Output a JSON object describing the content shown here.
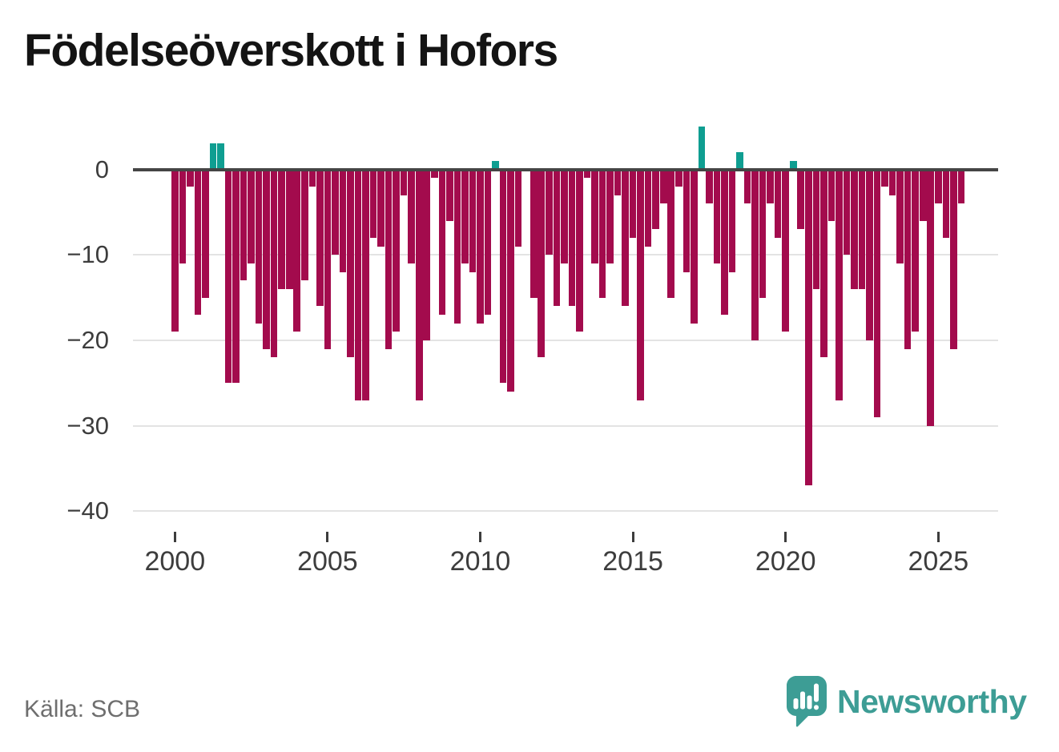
{
  "title": "Födelseöverskott i Hofors",
  "source": "Källa: SCB",
  "branding": {
    "name": "Newsworthy"
  },
  "colors": {
    "negative_bar": "#a30b4d",
    "positive_bar": "#0f9e91",
    "zero_line": "#454545",
    "gridline": "#e3e3e3",
    "axis_text": "#3d3d3d",
    "title_text": "#141414",
    "source_text": "#6e6e6e",
    "brand_teal": "#3d9d95"
  },
  "chart_data": {
    "type": "bar",
    "title": "Födelseöverskott i Hofors",
    "xlabel": "",
    "ylabel": "",
    "grid": true,
    "ylim": [
      -42,
      6
    ],
    "y_ticks": [
      0,
      -10,
      -20,
      -30,
      -40
    ],
    "y_tick_labels": [
      "0",
      "−10",
      "−20",
      "−30",
      "−40"
    ],
    "x_tick_years": [
      2000,
      2005,
      2010,
      2015,
      2020,
      2025
    ],
    "x_tick_labels": [
      "2000",
      "2005",
      "2010",
      "2015",
      "2020",
      "2025"
    ],
    "categories": [
      "2000Q1",
      "2000Q2",
      "2000Q3",
      "2000Q4",
      "2001Q1",
      "2001Q2",
      "2001Q3",
      "2001Q4",
      "2002Q1",
      "2002Q2",
      "2002Q3",
      "2002Q4",
      "2003Q1",
      "2003Q2",
      "2003Q3",
      "2003Q4",
      "2004Q1",
      "2004Q2",
      "2004Q3",
      "2004Q4",
      "2005Q1",
      "2005Q2",
      "2005Q3",
      "2005Q4",
      "2006Q1",
      "2006Q2",
      "2006Q3",
      "2006Q4",
      "2007Q1",
      "2007Q2",
      "2007Q3",
      "2007Q4",
      "2008Q1",
      "2008Q2",
      "2008Q3",
      "2008Q4",
      "2009Q1",
      "2009Q2",
      "2009Q3",
      "2009Q4",
      "2010Q1",
      "2010Q2",
      "2010Q3",
      "2010Q4",
      "2011Q1",
      "2011Q2",
      "2011Q3",
      "2011Q4",
      "2012Q1",
      "2012Q2",
      "2012Q3",
      "2012Q4",
      "2013Q1",
      "2013Q2",
      "2013Q3",
      "2013Q4",
      "2014Q1",
      "2014Q2",
      "2014Q3",
      "2014Q4",
      "2015Q1",
      "2015Q2",
      "2015Q3",
      "2015Q4",
      "2016Q1",
      "2016Q2",
      "2016Q3",
      "2016Q4",
      "2017Q1",
      "2017Q2",
      "2017Q3",
      "2017Q4",
      "2018Q1",
      "2018Q2",
      "2018Q3",
      "2018Q4",
      "2019Q1",
      "2019Q2",
      "2019Q3",
      "2019Q4",
      "2020Q1",
      "2020Q2",
      "2020Q3",
      "2020Q4",
      "2021Q1",
      "2021Q2",
      "2021Q3",
      "2021Q4",
      "2022Q1",
      "2022Q2",
      "2022Q3",
      "2022Q4",
      "2023Q1",
      "2023Q2",
      "2023Q3",
      "2023Q4",
      "2024Q1",
      "2024Q2",
      "2024Q3",
      "2024Q4",
      "2025Q1",
      "2025Q2",
      "2025Q3",
      "2025Q4"
    ],
    "values": [
      -19,
      -11,
      -2,
      -17,
      -15,
      3,
      3,
      -25,
      -25,
      -13,
      -11,
      -18,
      -21,
      -22,
      -14,
      -14,
      -19,
      -13,
      -2,
      -16,
      -21,
      -10,
      -12,
      -22,
      -27,
      -27,
      -8,
      -9,
      -21,
      -19,
      -3,
      -11,
      -27,
      -20,
      -1,
      -17,
      -6,
      -18,
      -11,
      -12,
      -18,
      -17,
      1,
      -25,
      -26,
      -9,
      0,
      -15,
      -22,
      -10,
      -16,
      -11,
      -16,
      -19,
      -1,
      -11,
      -15,
      -11,
      -3,
      -16,
      -8,
      -27,
      -9,
      -7,
      -4,
      -15,
      -2,
      -12,
      -18,
      5,
      -4,
      -11,
      -17,
      -12,
      2,
      -4,
      -20,
      -15,
      -4,
      -8,
      -19,
      1,
      -7,
      -37,
      -14,
      -22,
      -6,
      -27,
      -10,
      -14,
      -14,
      -20,
      -29,
      -2,
      -3,
      -11,
      -21,
      -19,
      -6,
      -30,
      -4,
      -8,
      -21,
      -4
    ],
    "legend": null
  }
}
